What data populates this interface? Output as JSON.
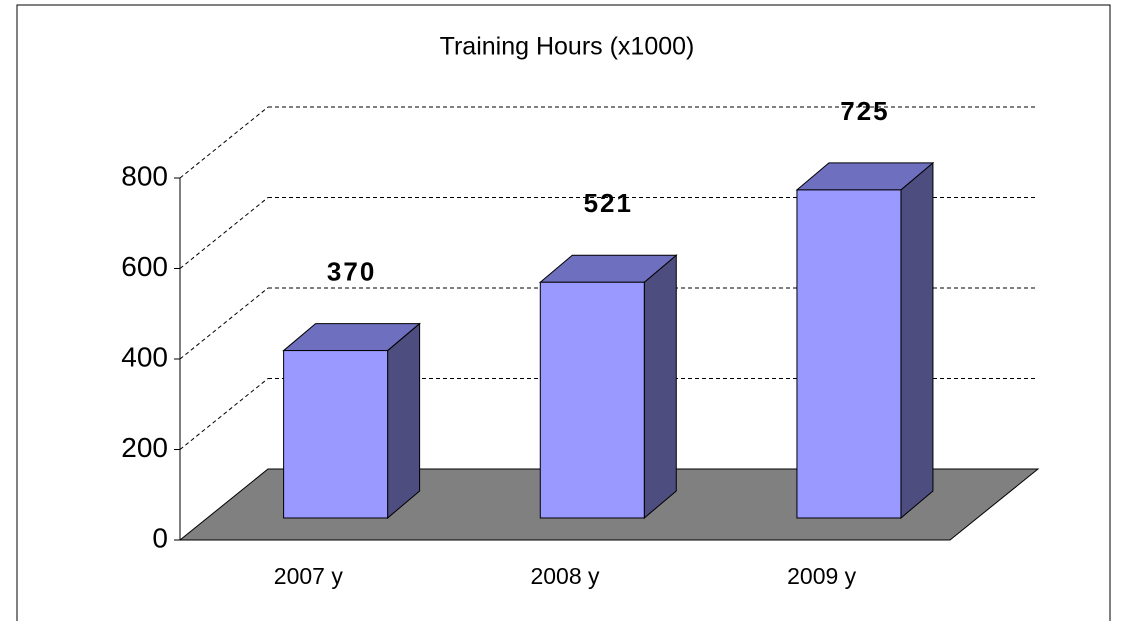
{
  "chart_data": {
    "type": "bar3d",
    "title": "Training Hours (x1000)",
    "categories": [
      "2007 y",
      "2008 y",
      "2009 y"
    ],
    "values": [
      370,
      521,
      725
    ],
    "color": "#9999ff",
    "top_color": "#6f6fbf",
    "side_color": "#4d4d80",
    "floor_color": "#808080",
    "ylim": [
      0,
      800
    ],
    "yticks": [
      0,
      200,
      400,
      600,
      800
    ],
    "grid": true
  }
}
